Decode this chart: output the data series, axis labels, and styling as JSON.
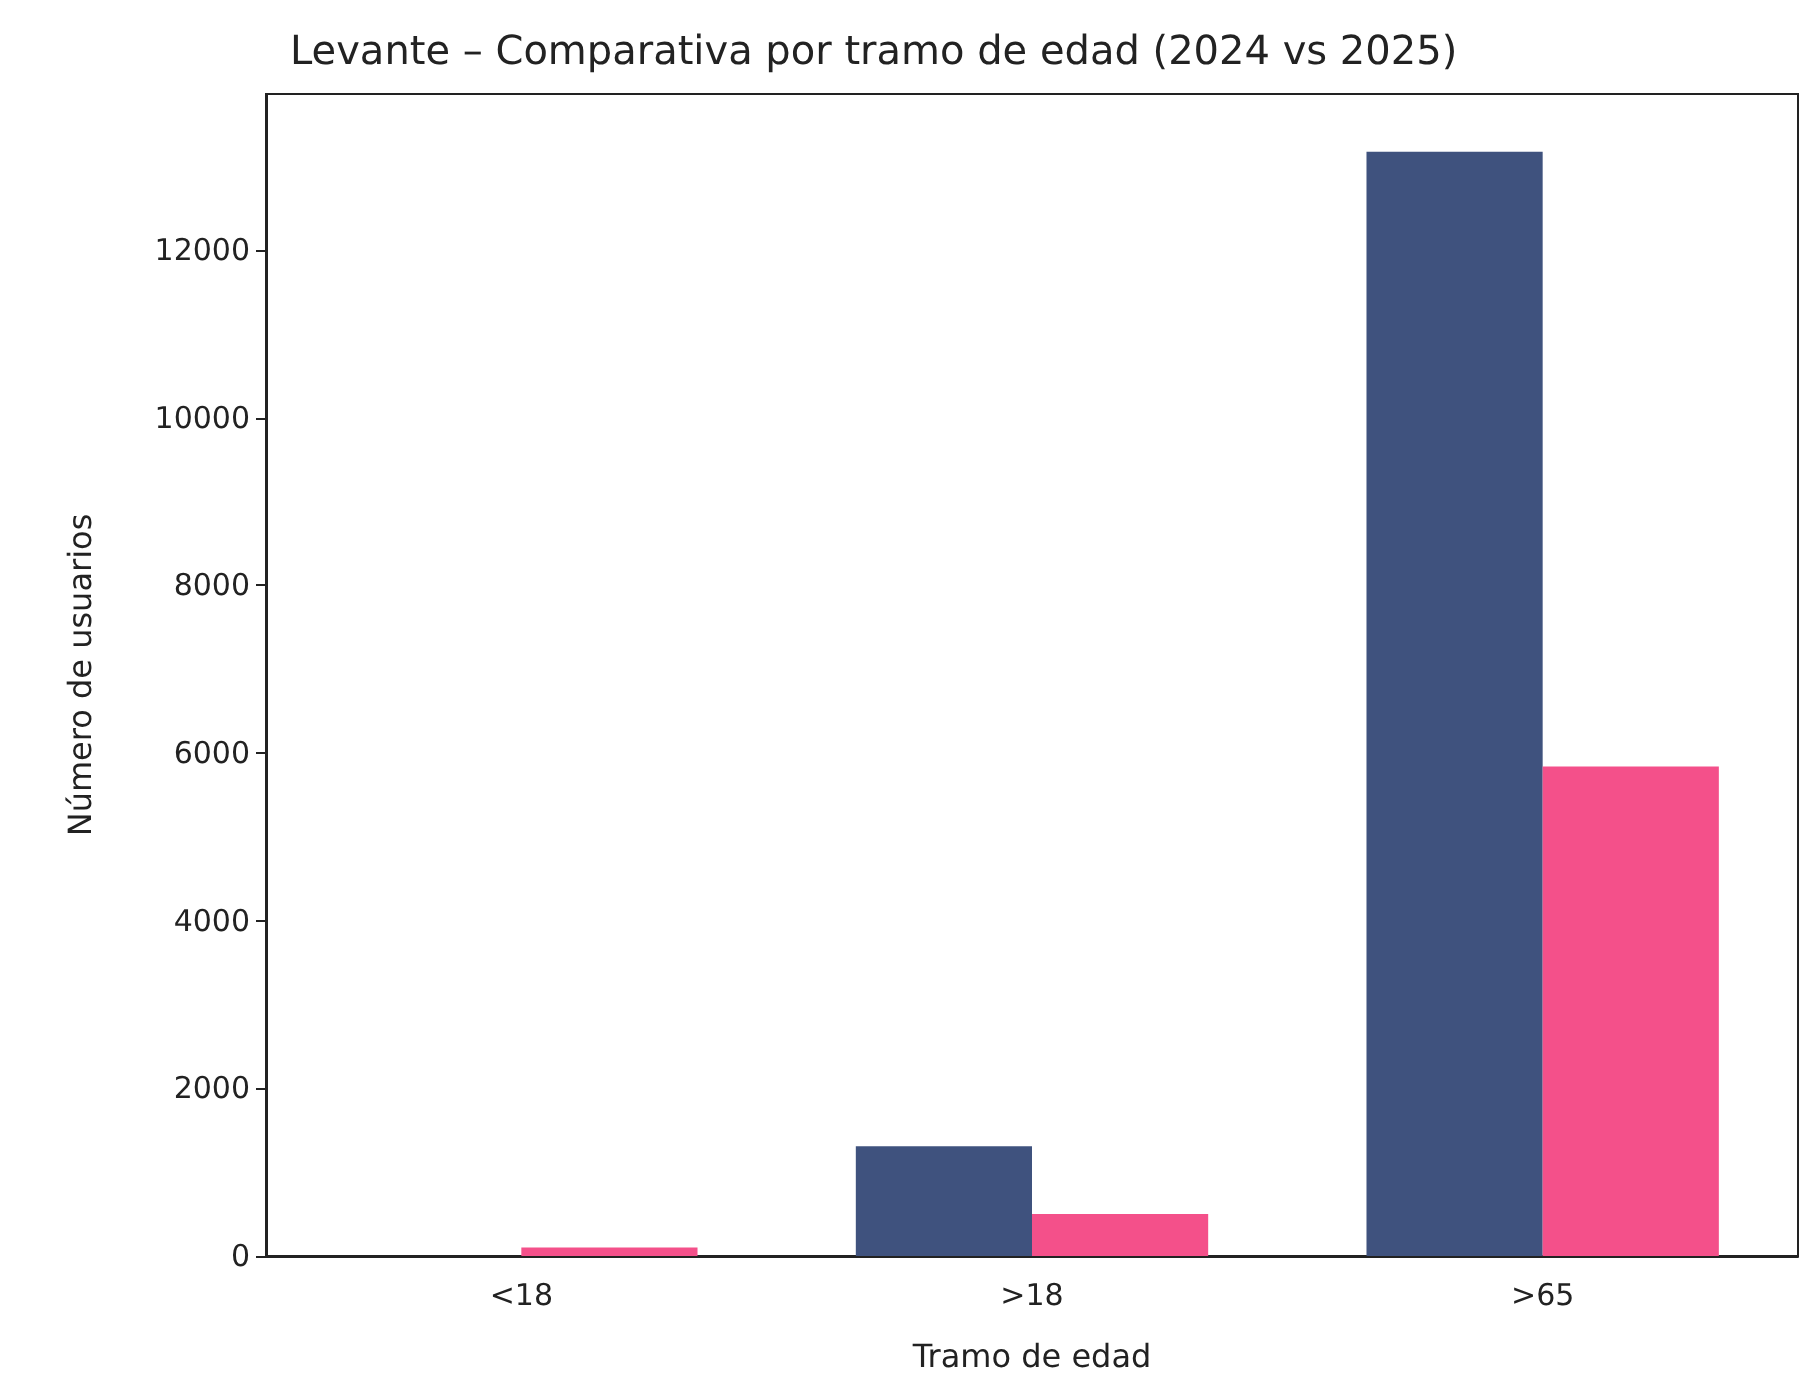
{
  "chart_data": {
    "type": "bar",
    "title": "Levante – Comparativa por tramo de edad (2024 vs 2025)",
    "xlabel": "Tramo de edad",
    "ylabel": "Número de usuarios",
    "categories": [
      "<18",
      ">18",
      ">65"
    ],
    "series": [
      {
        "color": "#3f527e",
        "values": [
          0,
          1310,
          13170
        ]
      },
      {
        "color": "#f4508a",
        "values": [
          100,
          500,
          5840
        ]
      }
    ],
    "ylim": [
      0,
      13860
    ],
    "yticks": [
      0,
      2000,
      4000,
      6000,
      8000,
      10000,
      12000
    ],
    "grid": false
  }
}
